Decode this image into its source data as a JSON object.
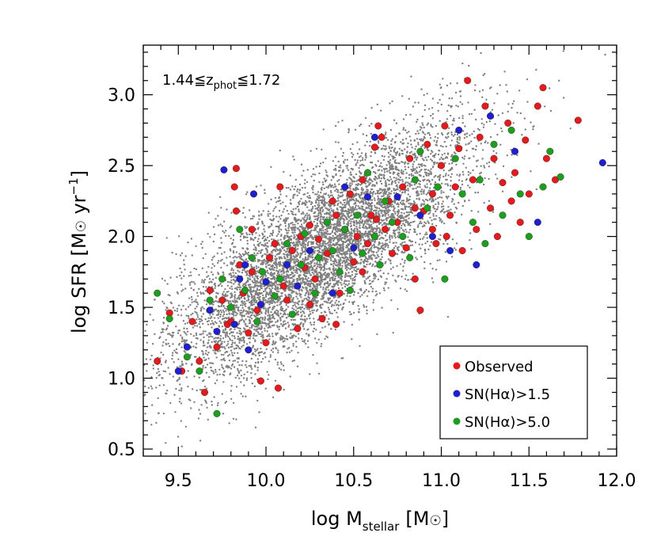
{
  "chart_data": {
    "type": "scatter",
    "xlabel": {
      "main": "log M",
      "sub": "stellar",
      "unit": "[M",
      "sun": "☉",
      "close": "]"
    },
    "ylabel": {
      "main": "log SFR [M",
      "sun": "☉",
      "mid": " yr",
      "sup": "−1",
      "close": "]"
    },
    "xlim": [
      9.3,
      12.0
    ],
    "ylim": [
      0.45,
      3.35
    ],
    "xticks": [
      9.5,
      10.0,
      10.5,
      11.0,
      11.5,
      12.0
    ],
    "xtick_labels": [
      "9.5",
      "10.0",
      "10.5",
      "11.0",
      "11.5",
      "12.0"
    ],
    "yticks": [
      0.5,
      1.0,
      1.5,
      2.0,
      2.5,
      3.0
    ],
    "ytick_labels": [
      "0.5",
      "1.0",
      "1.5",
      "2.0",
      "2.5",
      "3.0"
    ],
    "annotation": {
      "lo": "1.44≦z",
      "sub": "phot",
      "hi": "≦1.72"
    },
    "colors": {
      "background": "#808080",
      "observed": "#e41a1c",
      "sn15": "#1f1fd0",
      "sn50": "#1e9e1e"
    },
    "background_sample": {
      "count": 7000,
      "relation": "log SFR ≈ 0.79·log M − 6.25 (estimated)",
      "seed": 7
    },
    "legend": [
      {
        "label": "Observed",
        "color": "#e41a1c"
      },
      {
        "label": "SN(Hα)>1.5",
        "color": "#1f1fd0"
      },
      {
        "label": "SN(Hα)>5.0",
        "color": "#1e9e1e"
      }
    ],
    "series": [
      {
        "name": "Observed",
        "color": "#e41a1c",
        "points": [
          [
            9.38,
            1.12
          ],
          [
            9.45,
            1.46
          ],
          [
            9.52,
            1.05
          ],
          [
            9.58,
            1.4
          ],
          [
            9.62,
            1.12
          ],
          [
            9.65,
            0.9
          ],
          [
            9.68,
            1.62
          ],
          [
            9.72,
            1.22
          ],
          [
            9.75,
            1.55
          ],
          [
            9.78,
            1.38
          ],
          [
            9.82,
            2.35
          ],
          [
            9.83,
            2.48
          ],
          [
            9.83,
            2.18
          ],
          [
            9.85,
            1.8
          ],
          [
            9.87,
            1.6
          ],
          [
            9.9,
            1.32
          ],
          [
            9.92,
            1.75
          ],
          [
            9.95,
            1.48
          ],
          [
            9.97,
            0.98
          ],
          [
            10.0,
            1.25
          ],
          [
            10.02,
            1.85
          ],
          [
            10.05,
            1.95
          ],
          [
            10.08,
            2.35
          ],
          [
            10.1,
            1.65
          ],
          [
            10.12,
            1.55
          ],
          [
            10.15,
            1.9
          ],
          [
            10.18,
            1.35
          ],
          [
            10.2,
            2.0
          ],
          [
            10.22,
            1.78
          ],
          [
            10.25,
            2.08
          ],
          [
            10.28,
            1.7
          ],
          [
            10.3,
            1.98
          ],
          [
            10.32,
            1.42
          ],
          [
            10.35,
            1.88
          ],
          [
            10.38,
            2.25
          ],
          [
            10.4,
            2.15
          ],
          [
            10.42,
            1.6
          ],
          [
            10.45,
            2.05
          ],
          [
            10.48,
            2.3
          ],
          [
            10.5,
            1.82
          ],
          [
            10.52,
            2.0
          ],
          [
            10.55,
            2.4
          ],
          [
            10.58,
            1.95
          ],
          [
            10.6,
            2.15
          ],
          [
            10.62,
            2.63
          ],
          [
            10.64,
            2.78
          ],
          [
            10.66,
            2.7
          ],
          [
            10.68,
            2.05
          ],
          [
            10.7,
            2.25
          ],
          [
            10.72,
            1.88
          ],
          [
            10.75,
            2.1
          ],
          [
            10.78,
            2.35
          ],
          [
            10.8,
            1.92
          ],
          [
            10.82,
            2.55
          ],
          [
            10.85,
            2.2
          ],
          [
            10.88,
            1.48
          ],
          [
            10.9,
            2.18
          ],
          [
            10.92,
            2.65
          ],
          [
            10.95,
            2.3
          ],
          [
            10.97,
            1.95
          ],
          [
            11.0,
            2.5
          ],
          [
            11.02,
            2.78
          ],
          [
            11.05,
            2.15
          ],
          [
            11.08,
            2.35
          ],
          [
            11.1,
            2.62
          ],
          [
            11.12,
            1.9
          ],
          [
            11.15,
            3.1
          ],
          [
            11.18,
            2.4
          ],
          [
            11.2,
            2.05
          ],
          [
            11.22,
            2.7
          ],
          [
            11.25,
            2.92
          ],
          [
            11.28,
            2.2
          ],
          [
            11.3,
            2.55
          ],
          [
            11.32,
            2.0
          ],
          [
            11.35,
            2.38
          ],
          [
            11.38,
            2.8
          ],
          [
            11.42,
            2.45
          ],
          [
            11.45,
            2.1
          ],
          [
            11.48,
            2.68
          ],
          [
            11.5,
            2.3
          ],
          [
            11.55,
            2.92
          ],
          [
            11.58,
            3.05
          ],
          [
            11.6,
            2.55
          ],
          [
            11.65,
            2.4
          ],
          [
            11.78,
            2.82
          ],
          [
            10.07,
            0.93
          ],
          [
            9.92,
            2.05
          ],
          [
            10.4,
            1.38
          ],
          [
            10.63,
            2.12
          ],
          [
            10.85,
            1.7
          ],
          [
            11.03,
            2.0
          ],
          [
            10.25,
            1.52
          ],
          [
            9.8,
            1.4
          ],
          [
            10.55,
            1.75
          ],
          [
            10.95,
            2.05
          ],
          [
            11.4,
            2.25
          ]
        ]
      },
      {
        "name": "SN(Hα)>1.5",
        "color": "#1f1fd0",
        "points": [
          [
            9.5,
            1.05
          ],
          [
            9.55,
            1.22
          ],
          [
            9.68,
            1.48
          ],
          [
            9.72,
            1.33
          ],
          [
            9.76,
            2.47
          ],
          [
            9.82,
            1.38
          ],
          [
            9.85,
            1.7
          ],
          [
            9.88,
            1.8
          ],
          [
            9.9,
            1.2
          ],
          [
            9.93,
            2.3
          ],
          [
            9.97,
            1.52
          ],
          [
            10.0,
            1.68
          ],
          [
            10.12,
            1.8
          ],
          [
            10.18,
            1.65
          ],
          [
            10.25,
            1.9
          ],
          [
            10.38,
            1.6
          ],
          [
            10.45,
            2.35
          ],
          [
            10.5,
            1.92
          ],
          [
            10.58,
            2.28
          ],
          [
            10.62,
            2.7
          ],
          [
            10.75,
            2.28
          ],
          [
            10.88,
            2.15
          ],
          [
            10.95,
            2.0
          ],
          [
            11.05,
            1.9
          ],
          [
            11.1,
            2.75
          ],
          [
            11.2,
            1.8
          ],
          [
            11.28,
            2.85
          ],
          [
            11.42,
            2.6
          ],
          [
            11.55,
            2.1
          ],
          [
            11.92,
            2.52
          ]
        ]
      },
      {
        "name": "SN(Hα)>5.0",
        "color": "#1e9e1e",
        "points": [
          [
            9.38,
            1.6
          ],
          [
            9.45,
            1.42
          ],
          [
            9.55,
            1.15
          ],
          [
            9.62,
            1.05
          ],
          [
            9.68,
            1.55
          ],
          [
            9.72,
            0.75
          ],
          [
            9.75,
            1.7
          ],
          [
            9.8,
            1.5
          ],
          [
            9.85,
            2.05
          ],
          [
            9.88,
            1.62
          ],
          [
            9.92,
            1.85
          ],
          [
            9.95,
            1.4
          ],
          [
            9.98,
            1.75
          ],
          [
            10.05,
            1.58
          ],
          [
            10.08,
            1.7
          ],
          [
            10.12,
            1.95
          ],
          [
            10.15,
            1.45
          ],
          [
            10.2,
            1.8
          ],
          [
            10.22,
            2.02
          ],
          [
            10.28,
            1.6
          ],
          [
            10.3,
            1.85
          ],
          [
            10.35,
            2.1
          ],
          [
            10.38,
            1.9
          ],
          [
            10.42,
            1.75
          ],
          [
            10.45,
            2.05
          ],
          [
            10.48,
            1.62
          ],
          [
            10.52,
            2.15
          ],
          [
            10.55,
            1.88
          ],
          [
            10.58,
            2.45
          ],
          [
            10.62,
            2.0
          ],
          [
            10.65,
            1.8
          ],
          [
            10.68,
            2.25
          ],
          [
            10.72,
            2.1
          ],
          [
            10.78,
            2.0
          ],
          [
            10.82,
            1.85
          ],
          [
            10.85,
            2.4
          ],
          [
            10.88,
            2.6
          ],
          [
            10.92,
            2.2
          ],
          [
            10.98,
            2.35
          ],
          [
            11.02,
            1.7
          ],
          [
            11.08,
            2.55
          ],
          [
            11.12,
            2.3
          ],
          [
            11.18,
            2.1
          ],
          [
            11.22,
            2.4
          ],
          [
            11.25,
            1.95
          ],
          [
            11.3,
            2.65
          ],
          [
            11.35,
            2.15
          ],
          [
            11.4,
            2.75
          ],
          [
            11.45,
            2.3
          ],
          [
            11.5,
            2.0
          ],
          [
            11.58,
            2.35
          ],
          [
            11.62,
            2.6
          ],
          [
            11.68,
            2.42
          ]
        ]
      }
    ]
  }
}
